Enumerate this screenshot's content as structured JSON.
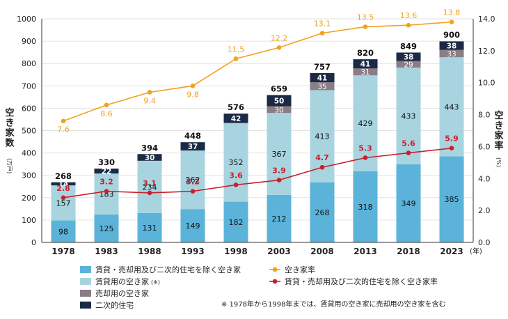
{
  "chart_data": {
    "type": "bar+line",
    "categories": [
      "1978",
      "1983",
      "1988",
      "1993",
      "1998",
      "2003",
      "2008",
      "2013",
      "2018",
      "2023"
    ],
    "year_unit": "(年)",
    "y_left": {
      "label": "空き家数",
      "unit": "(万戸)",
      "range": [
        0,
        1000
      ],
      "ticks": [
        "0",
        "100",
        "200",
        "300",
        "400",
        "500",
        "600",
        "700",
        "800",
        "900",
        "1000"
      ]
    },
    "y_right": {
      "label": "空き家率",
      "unit": "(%)",
      "range": [
        0,
        14
      ],
      "ticks": [
        "0.0",
        "2.0",
        "4.0",
        "6.0",
        "8.0",
        "10.0",
        "12.0",
        "14.0"
      ]
    },
    "series": [
      {
        "name": "賃貸・売却用及び二次的住宅を除く空き家",
        "color": "#5BB3D9",
        "values": [
          98,
          125,
          131,
          149,
          182,
          212,
          268,
          318,
          349,
          385
        ]
      },
      {
        "name": "賃貸用の空き家",
        "note": "(※)",
        "color": "#A8D4E0",
        "values": [
          157,
          183,
          234,
          262,
          352,
          367,
          413,
          429,
          433,
          443
        ]
      },
      {
        "name": "売却用の空き家",
        "color": "#8A7D85",
        "values": [
          null,
          null,
          null,
          null,
          null,
          30,
          35,
          31,
          29,
          33
        ]
      },
      {
        "name": "二次的住宅",
        "color": "#1B2A45",
        "values": [
          14,
          22,
          30,
          37,
          42,
          50,
          41,
          41,
          38,
          38
        ]
      }
    ],
    "totals": [
      268,
      330,
      394,
      448,
      576,
      659,
      757,
      820,
      849,
      900
    ],
    "lines": [
      {
        "name": "空き家率",
        "color": "#F0A21E",
        "values": [
          7.6,
          8.6,
          9.4,
          9.8,
          11.5,
          12.2,
          13.1,
          13.5,
          13.6,
          13.8
        ]
      },
      {
        "name": "賃貸・売却用及び二次的住宅を除く空き家率",
        "color": "#C8202A",
        "values": [
          2.8,
          3.2,
          3.1,
          3.2,
          3.6,
          3.9,
          4.7,
          5.3,
          5.6,
          5.9
        ]
      }
    ],
    "footnote": "※ 1978年から1998年までは、賃貸用の空き家に売却用の空き家を含む",
    "grid": "horizontal",
    "legend_position": "bottom"
  }
}
